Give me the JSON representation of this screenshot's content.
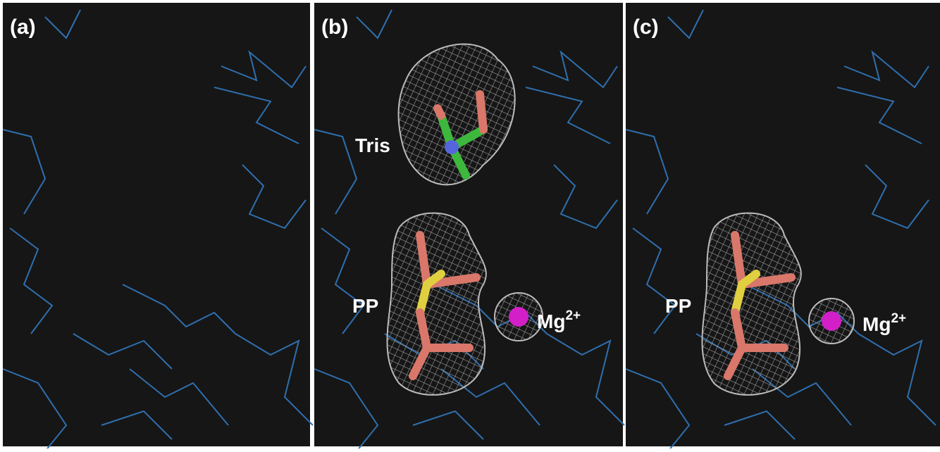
{
  "panels": [
    {
      "label": "(a)"
    },
    {
      "label": "(b)",
      "annotations": {
        "tris": "Tris",
        "pp": "PP",
        "mg": {
          "text": "Mg",
          "superscript": "2+"
        }
      }
    },
    {
      "label": "(c)",
      "annotations": {
        "pp": "PP",
        "mg": {
          "text": "Mg",
          "superscript": "2+"
        }
      }
    }
  ]
}
